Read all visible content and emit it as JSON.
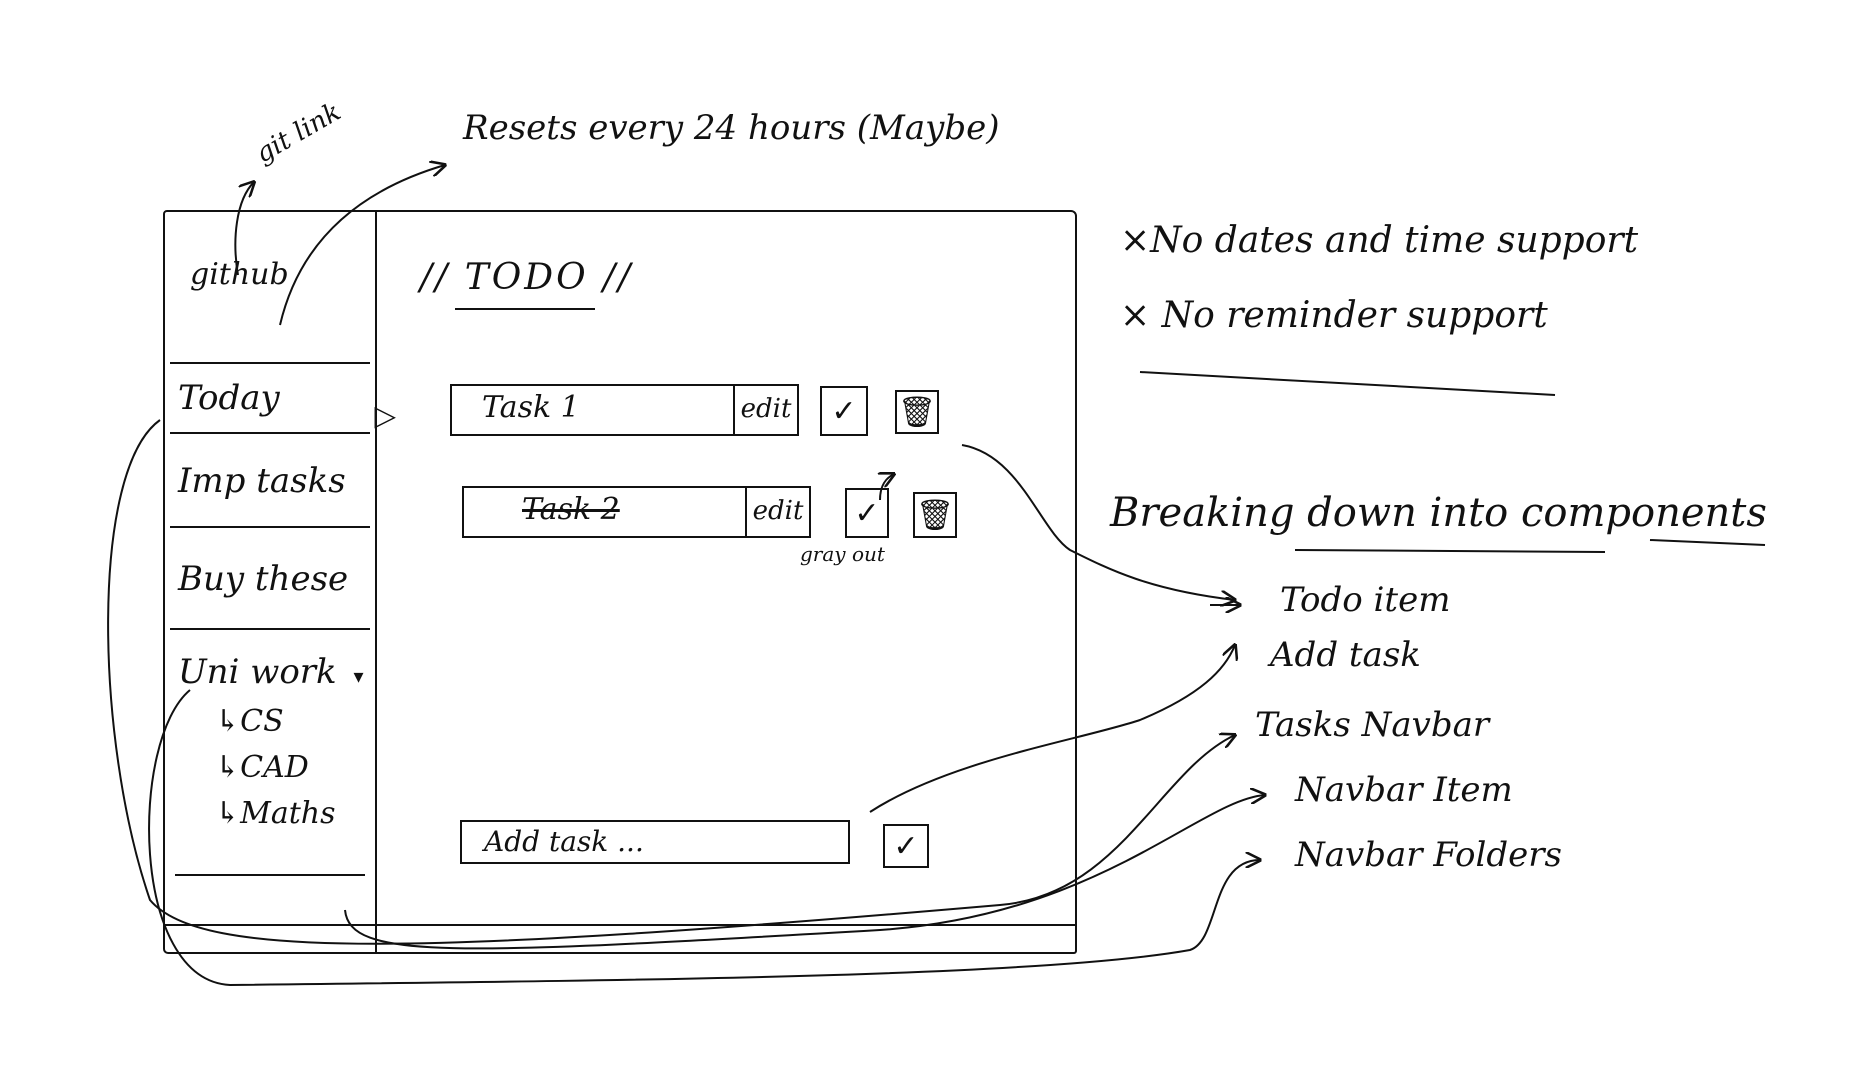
{
  "annotations": {
    "git_link": "git link",
    "resets": "Resets every 24 hours (Maybe)",
    "gray_out": "gray out"
  },
  "sidebar": {
    "brand": "github",
    "items": [
      {
        "label": "Today"
      },
      {
        "label": "Imp tasks"
      },
      {
        "label": "Buy these"
      }
    ],
    "folder": {
      "label": "Uni work",
      "children": [
        "↳CS",
        "↳CAD",
        "↳Maths"
      ]
    }
  },
  "main": {
    "title": "// TODO //",
    "tasks": [
      {
        "name": "Task 1",
        "edit": "edit",
        "done": false
      },
      {
        "name": "Task 2",
        "edit": "edit",
        "done": true
      }
    ],
    "add_placeholder": "Add task ..."
  },
  "notes": {
    "no_dates": "×No dates and time support",
    "no_reminder": "× No reminder support"
  },
  "components": {
    "heading": "Breaking down into components",
    "items": [
      "Todo item",
      "Add task",
      "Tasks Navbar",
      "Navbar Item",
      "Navbar Folders"
    ]
  },
  "icons": {
    "check": "check-icon",
    "trash": "trash-icon"
  }
}
